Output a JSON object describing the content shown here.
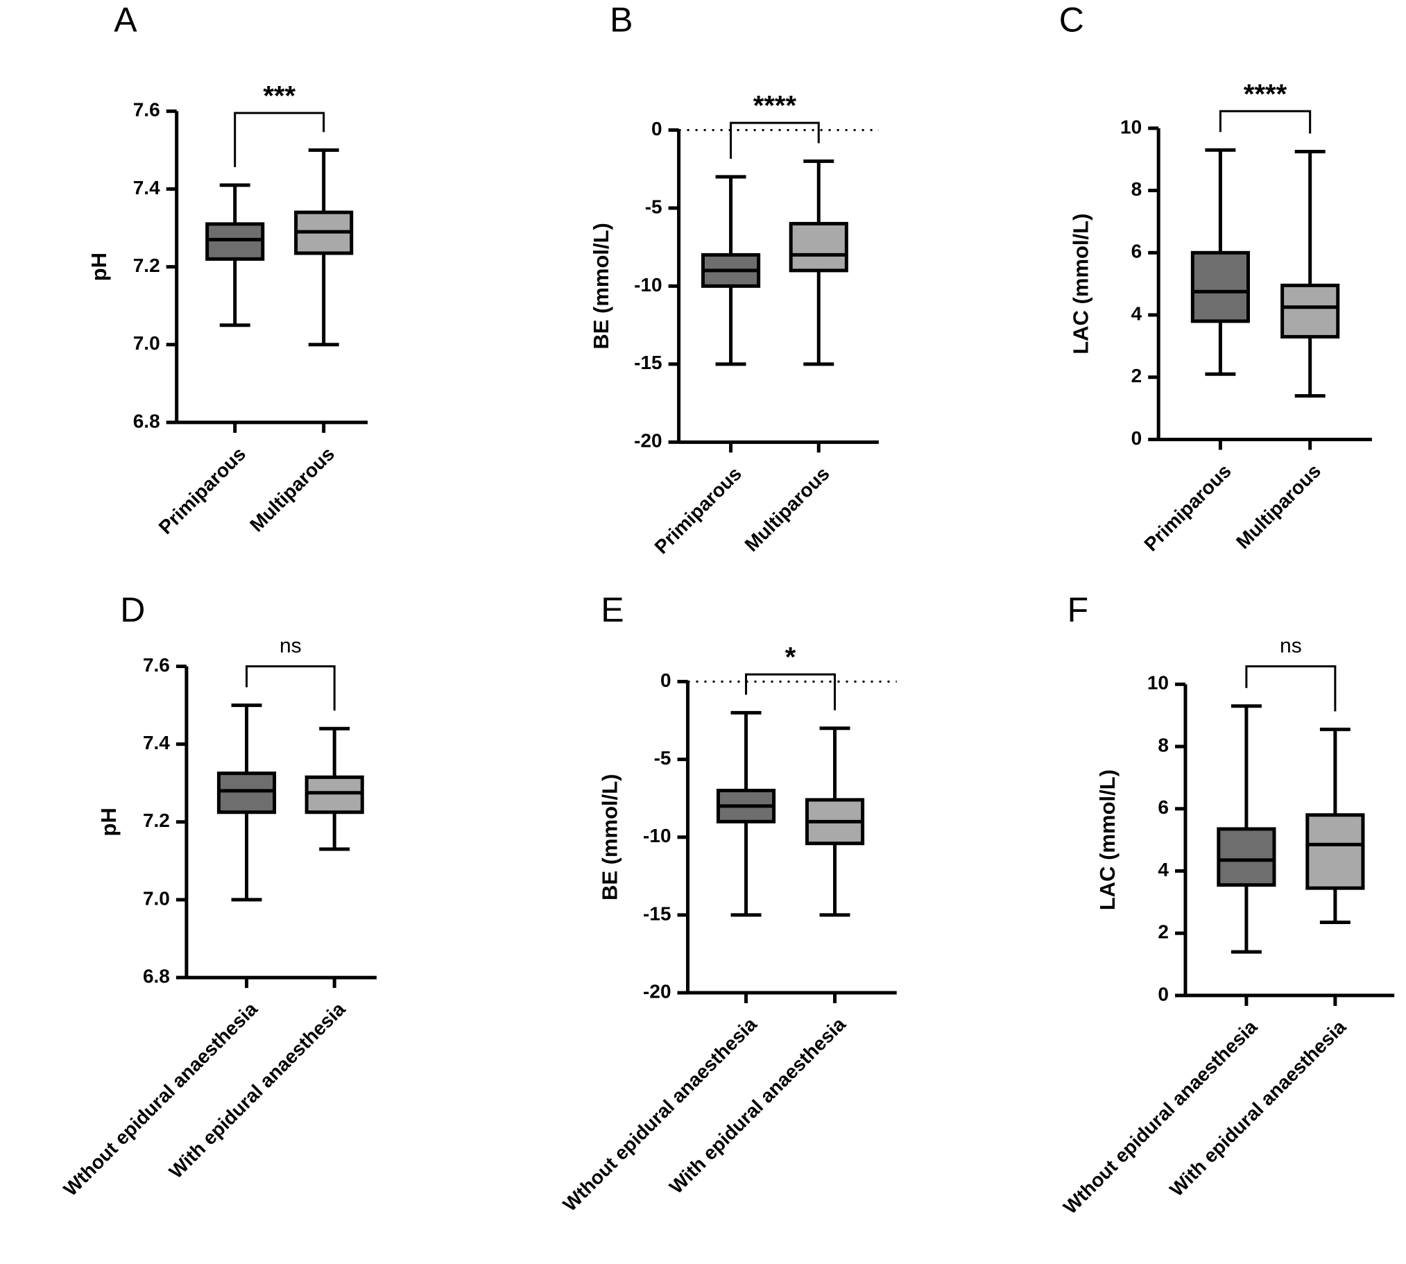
{
  "chart_data": [
    {
      "type": "box",
      "panel": "A",
      "ylabel": "pH",
      "categories": [
        "Primiparous",
        "Multiparous"
      ],
      "boxes": [
        {
          "min": 7.05,
          "q1": 7.22,
          "median": 7.27,
          "q3": 7.31,
          "max": 7.41,
          "color": "#6e6e6e"
        },
        {
          "min": 7.0,
          "q1": 7.235,
          "median": 7.29,
          "q3": 7.34,
          "max": 7.5,
          "color": "#a9a9a9"
        }
      ],
      "ylim": [
        6.8,
        7.6
      ],
      "yticks": [
        6.8,
        {
          "value": 7,
          "label": "7.0"
        },
        7.2,
        7.4,
        7.6
      ],
      "significance": "***"
    },
    {
      "type": "box",
      "panel": "B",
      "ylabel": "BE (mmol/L)",
      "categories": [
        "Primiparous",
        "Multiparous"
      ],
      "boxes": [
        {
          "min": -15,
          "q1": -10,
          "median": -9,
          "q3": -8,
          "max": -3,
          "color": "#6e6e6e"
        },
        {
          "min": -15,
          "q1": -9,
          "median": -8,
          "q3": -6,
          "max": -2,
          "color": "#a9a9a9"
        }
      ],
      "ylim": [
        -20,
        0
      ],
      "yticks": [
        -20,
        -15,
        -10,
        -5,
        0
      ],
      "reference_line": 0,
      "significance": "****"
    },
    {
      "type": "box",
      "panel": "C",
      "ylabel": "LAC (mmol/L)",
      "categories": [
        "Primiparous",
        "Multiparous"
      ],
      "boxes": [
        {
          "min": 2.1,
          "q1": 3.8,
          "median": 4.75,
          "q3": 6.0,
          "max": 9.3,
          "color": "#6e6e6e"
        },
        {
          "min": 1.4,
          "q1": 3.3,
          "median": 4.25,
          "q3": 4.95,
          "max": 9.25,
          "color": "#a9a9a9"
        }
      ],
      "ylim": [
        0,
        10
      ],
      "yticks": [
        0,
        2,
        4,
        6,
        8,
        10
      ],
      "significance": "****"
    },
    {
      "type": "box",
      "panel": "D",
      "ylabel": "pH",
      "categories": [
        "Wthout epidural anaesthesia",
        "With epidural anaesthesia"
      ],
      "boxes": [
        {
          "min": 7.0,
          "q1": 7.225,
          "median": 7.28,
          "q3": 7.325,
          "max": 7.5,
          "color": "#6e6e6e"
        },
        {
          "min": 7.13,
          "q1": 7.225,
          "median": 7.275,
          "q3": 7.315,
          "max": 7.44,
          "color": "#a9a9a9"
        }
      ],
      "ylim": [
        6.8,
        7.6
      ],
      "yticks": [
        6.8,
        {
          "value": 7,
          "label": "7.0"
        },
        7.2,
        7.4,
        7.6
      ],
      "significance": "ns"
    },
    {
      "type": "box",
      "panel": "E",
      "ylabel": "BE (mmol/L)",
      "categories": [
        "Wthout epidural anaesthesia",
        "With epidural anaesthesia"
      ],
      "boxes": [
        {
          "min": -15,
          "q1": -9,
          "median": -8,
          "q3": -7,
          "max": -2,
          "color": "#6e6e6e"
        },
        {
          "min": -15,
          "q1": -10.4,
          "median": -9,
          "q3": -7.6,
          "max": -3,
          "color": "#a9a9a9"
        }
      ],
      "ylim": [
        -20,
        0
      ],
      "yticks": [
        -20,
        -15,
        -10,
        -5,
        0
      ],
      "reference_line": 0,
      "significance": "*"
    },
    {
      "type": "box",
      "panel": "F",
      "ylabel": "LAC (mmol/L)",
      "categories": [
        "Wthout epidural anaesthesia",
        "With epidural anaesthesia"
      ],
      "boxes": [
        {
          "min": 1.4,
          "q1": 3.55,
          "median": 4.35,
          "q3": 5.35,
          "max": 9.3,
          "color": "#6e6e6e"
        },
        {
          "min": 2.35,
          "q1": 3.45,
          "median": 4.85,
          "q3": 5.8,
          "max": 8.55,
          "color": "#a9a9a9"
        }
      ],
      "ylim": [
        0,
        10
      ],
      "yticks": [
        0,
        2,
        4,
        6,
        8,
        10
      ],
      "significance": "ns"
    }
  ]
}
